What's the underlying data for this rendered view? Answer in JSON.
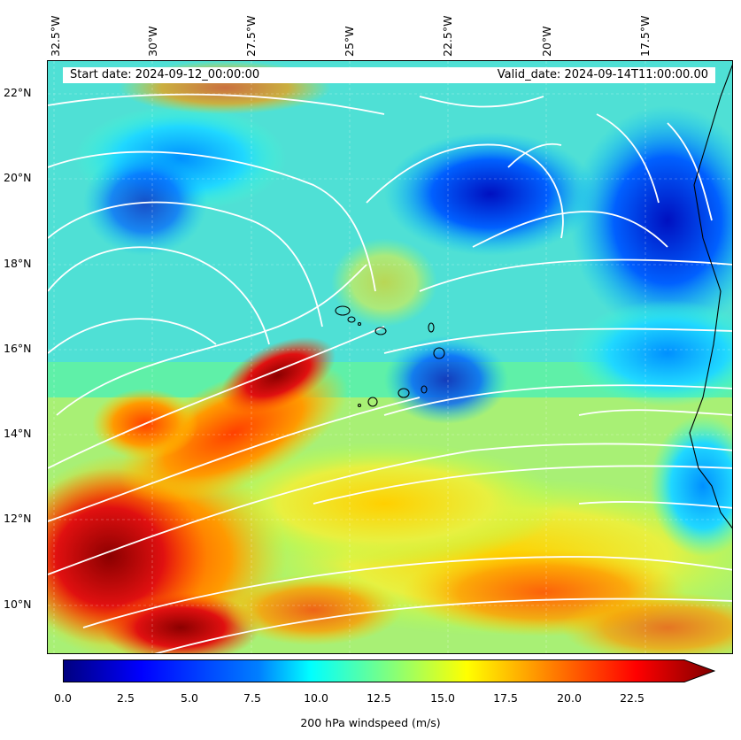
{
  "banner": {
    "start_date": "Start date: 2024-09-12_00:00:00",
    "valid_date": "Valid_date: 2024-09-14T11:00:00.00"
  },
  "axes": {
    "lon_labels": [
      "32.5°W",
      "30°W",
      "27.5°W",
      "25°W",
      "22.5°W",
      "20°W",
      "17.5°W"
    ],
    "lat_labels": [
      "22°N",
      "20°N",
      "18°N",
      "16°N",
      "14°N",
      "12°N",
      "10°N"
    ]
  },
  "colorbar": {
    "ticks": [
      "0.0",
      "2.5",
      "5.0",
      "7.5",
      "10.0",
      "12.5",
      "15.0",
      "17.5",
      "20.0",
      "22.5"
    ],
    "title": "200 hPa windspeed (m/s)",
    "colors": [
      "#00007f",
      "#0000ff",
      "#007fff",
      "#00ffff",
      "#7fff7f",
      "#ffff00",
      "#ff7f00",
      "#ff0000",
      "#7f0000"
    ]
  }
}
